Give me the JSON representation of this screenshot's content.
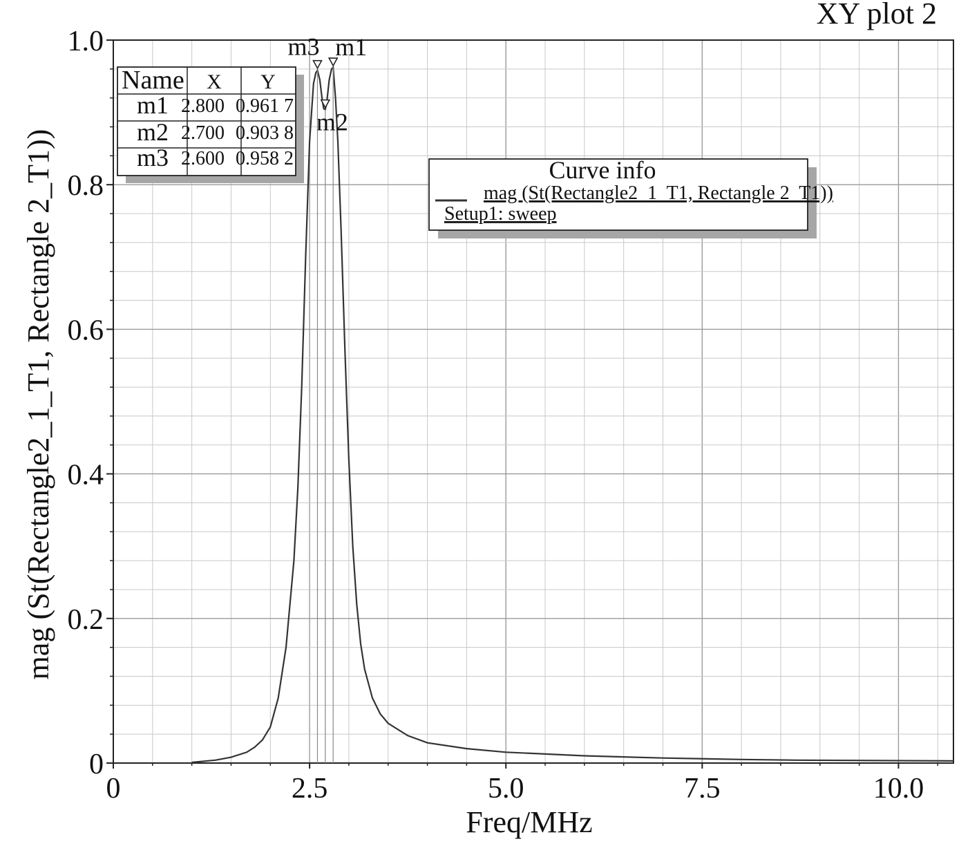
{
  "chart_data": {
    "type": "line",
    "title": "XY plot 2",
    "xlabel": "Freq/MHz",
    "ylabel": "mag (St(Rectangle2_1_T1, Rectangle 2_T1))",
    "xlim": [
      0,
      10.7
    ],
    "ylim": [
      0,
      1.0
    ],
    "x_ticks": [
      0,
      2.5,
      5.0,
      7.5,
      10.0
    ],
    "x_tick_labels": [
      "0",
      "2.5",
      "5.0",
      "7.5",
      "10.0"
    ],
    "y_ticks": [
      0,
      0.2,
      0.4,
      0.6,
      0.8,
      1.0
    ],
    "y_tick_labels": [
      "0",
      "0.2",
      "0.4",
      "0.6",
      "0.8",
      "1.0"
    ],
    "grid": true,
    "series": [
      {
        "name": "mag (St(Rectangle2  1  T1, Rectangle 2  T1))",
        "color": "#333333",
        "x": [
          1.0,
          1.3,
          1.5,
          1.7,
          1.8,
          1.9,
          2.0,
          2.1,
          2.2,
          2.3,
          2.35,
          2.4,
          2.45,
          2.5,
          2.55,
          2.58,
          2.6,
          2.63,
          2.66,
          2.68,
          2.7,
          2.72,
          2.75,
          2.78,
          2.8,
          2.83,
          2.86,
          2.9,
          2.95,
          3.0,
          3.05,
          3.1,
          3.15,
          3.2,
          3.3,
          3.4,
          3.5,
          3.75,
          4.0,
          4.5,
          5.0,
          6.0,
          7.0,
          8.0,
          8.7,
          10.7
        ],
        "y": [
          0.001,
          0.004,
          0.008,
          0.015,
          0.022,
          0.032,
          0.05,
          0.09,
          0.16,
          0.28,
          0.38,
          0.52,
          0.7,
          0.86,
          0.94,
          0.955,
          0.958,
          0.945,
          0.918,
          0.905,
          0.904,
          0.915,
          0.945,
          0.96,
          0.962,
          0.92,
          0.86,
          0.74,
          0.57,
          0.42,
          0.3,
          0.22,
          0.165,
          0.13,
          0.09,
          0.068,
          0.055,
          0.038,
          0.028,
          0.02,
          0.015,
          0.01,
          0.007,
          0.005,
          0.004,
          0.003
        ]
      }
    ],
    "markers": [
      {
        "name": "m1",
        "x": 2.8,
        "y": 0.9617
      },
      {
        "name": "m2",
        "x": 2.7,
        "y": 0.9038
      },
      {
        "name": "m3",
        "x": 2.6,
        "y": 0.9582
      }
    ],
    "marker_table": {
      "headers": [
        "Name",
        "X",
        "Y"
      ],
      "rows": [
        [
          "m1",
          "2.800",
          "0.961 7"
        ],
        [
          "m2",
          "2.700",
          "0.903 8"
        ],
        [
          "m3",
          "2.600",
          "0.958 2"
        ]
      ]
    },
    "curve_info": {
      "title": "Curve info",
      "curve_label": "mag (St(Rectangle2  1  T1, Rectangle 2  T1))",
      "setup_label": "Setup1: sweep"
    }
  }
}
